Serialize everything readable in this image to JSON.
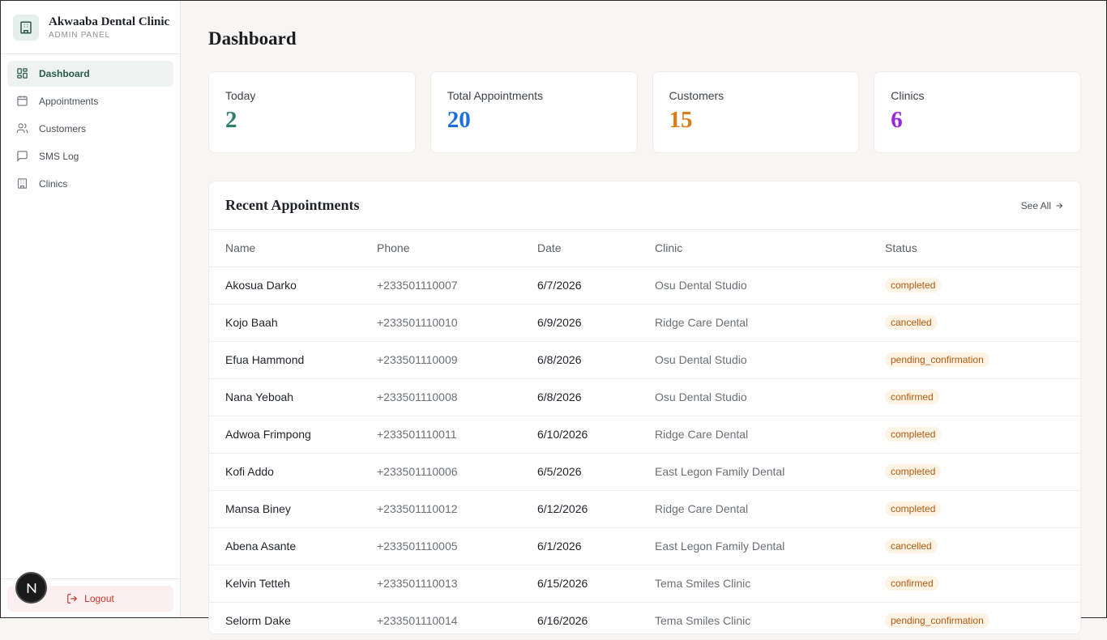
{
  "brand": {
    "name": "Akwaaba Dental Clinic",
    "subtitle": "ADMIN PANEL"
  },
  "colors": {
    "accent": "#2a5a4c",
    "today": "#2e7d6b",
    "total": "#1d6fe0",
    "customers": "#e07a14",
    "clinics": "#9b27d8",
    "logout": "#c0392b"
  },
  "nav": [
    {
      "label": "Dashboard",
      "icon": "grid-icon",
      "active": true
    },
    {
      "label": "Appointments",
      "icon": "calendar-icon",
      "active": false
    },
    {
      "label": "Customers",
      "icon": "users-icon",
      "active": false
    },
    {
      "label": "SMS Log",
      "icon": "message-icon",
      "active": false
    },
    {
      "label": "Clinics",
      "icon": "building-icon",
      "active": false
    }
  ],
  "logout_label": "Logout",
  "page_title": "Dashboard",
  "stats": [
    {
      "label": "Today",
      "value": "2"
    },
    {
      "label": "Total Appointments",
      "value": "20"
    },
    {
      "label": "Customers",
      "value": "15"
    },
    {
      "label": "Clinics",
      "value": "6"
    }
  ],
  "recent": {
    "title": "Recent Appointments",
    "see_all": "See All",
    "columns": [
      "Name",
      "Phone",
      "Date",
      "Clinic",
      "Status"
    ],
    "rows": [
      {
        "name": "Akosua Darko",
        "phone": "+233501110007",
        "date": "6/7/2026",
        "clinic": "Osu Dental Studio",
        "status": "completed"
      },
      {
        "name": "Kojo Baah",
        "phone": "+233501110010",
        "date": "6/9/2026",
        "clinic": "Ridge Care Dental",
        "status": "cancelled"
      },
      {
        "name": "Efua Hammond",
        "phone": "+233501110009",
        "date": "6/8/2026",
        "clinic": "Osu Dental Studio",
        "status": "pending_confirmation"
      },
      {
        "name": "Nana Yeboah",
        "phone": "+233501110008",
        "date": "6/8/2026",
        "clinic": "Osu Dental Studio",
        "status": "confirmed"
      },
      {
        "name": "Adwoa Frimpong",
        "phone": "+233501110011",
        "date": "6/10/2026",
        "clinic": "Ridge Care Dental",
        "status": "completed"
      },
      {
        "name": "Kofi Addo",
        "phone": "+233501110006",
        "date": "6/5/2026",
        "clinic": "East Legon Family Dental",
        "status": "completed"
      },
      {
        "name": "Mansa Biney",
        "phone": "+233501110012",
        "date": "6/12/2026",
        "clinic": "Ridge Care Dental",
        "status": "completed"
      },
      {
        "name": "Abena Asante",
        "phone": "+233501110005",
        "date": "6/1/2026",
        "clinic": "East Legon Family Dental",
        "status": "cancelled"
      },
      {
        "name": "Kelvin Tetteh",
        "phone": "+233501110013",
        "date": "6/15/2026",
        "clinic": "Tema Smiles Clinic",
        "status": "confirmed"
      },
      {
        "name": "Selorm Dake",
        "phone": "+233501110014",
        "date": "6/16/2026",
        "clinic": "Tema Smiles Clinic",
        "status": "pending_confirmation"
      }
    ]
  }
}
